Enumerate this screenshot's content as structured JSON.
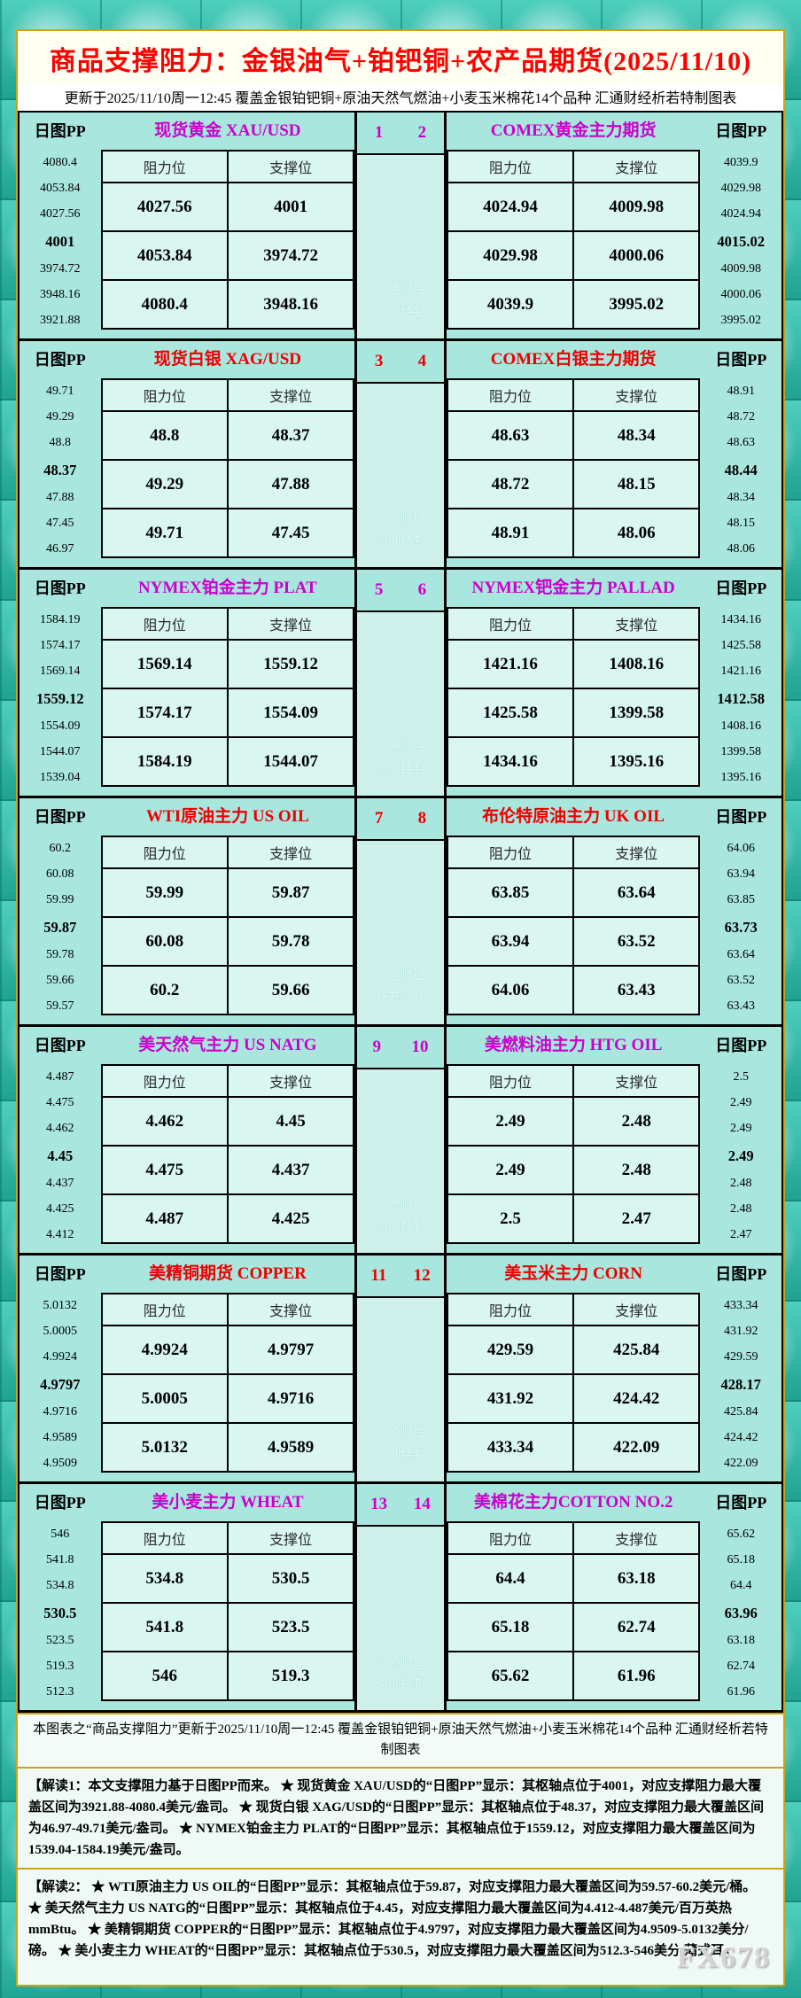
{
  "title": "商品支撑阻力：金银油气+铂钯铜+农产品期货(2025/11/10)",
  "subtitle": "更新于2025/11/10周一12:45  覆盖金银铂钯铜+原油天然气燃油+小麦玉米棉花14个品种  汇通财经析若特制图表",
  "labels": {
    "pp": "日图PP",
    "resistance": "阻力位",
    "support": "支撑位"
  },
  "colors": {
    "title_red": "#ff0000",
    "accent_magenta": "#cc00cc",
    "accent_red": "#ee0000",
    "panel_teal": "#a9e6de",
    "cell_teal": "#d9f6f1",
    "gold_border": "#c9a515"
  },
  "rows": [
    {
      "nums": [
        "1",
        "2"
      ],
      "accent": "#cc00cc",
      "watermark": [
        "汇通财经",
        "原创特制"
      ],
      "left": {
        "title": "现货黄金 XAU/USD",
        "pp": [
          "4080.4",
          "4053.84",
          "4027.56",
          "4001",
          "3974.72",
          "3948.16",
          "3921.88"
        ],
        "table": [
          [
            "4027.56",
            "4001"
          ],
          [
            "4053.84",
            "3974.72"
          ],
          [
            "4080.4",
            "3948.16"
          ]
        ]
      },
      "right": {
        "title": "COMEX黄金主力期货",
        "pp": [
          "4039.9",
          "4029.98",
          "4024.94",
          "4015.02",
          "4009.98",
          "4000.06",
          "3995.02"
        ],
        "table": [
          [
            "4024.94",
            "4009.98"
          ],
          [
            "4029.98",
            "4000.06"
          ],
          [
            "4039.9",
            "3995.02"
          ]
        ]
      }
    },
    {
      "nums": [
        "3",
        "4"
      ],
      "accent": "#ee0000",
      "watermark": [
        "汇通财经",
        "原创特制"
      ],
      "left": {
        "title": "现货白银 XAG/USD",
        "pp": [
          "49.71",
          "49.29",
          "48.8",
          "48.37",
          "47.88",
          "47.45",
          "46.97"
        ],
        "table": [
          [
            "48.8",
            "48.37"
          ],
          [
            "49.29",
            "47.88"
          ],
          [
            "49.71",
            "47.45"
          ]
        ]
      },
      "right": {
        "title": "COMEX白银主力期货",
        "pp": [
          "48.91",
          "48.72",
          "48.63",
          "48.44",
          "48.34",
          "48.15",
          "48.06"
        ],
        "table": [
          [
            "48.63",
            "48.34"
          ],
          [
            "48.72",
            "48.15"
          ],
          [
            "48.91",
            "48.06"
          ]
        ]
      }
    },
    {
      "nums": [
        "5",
        "6"
      ],
      "accent": "#cc00cc",
      "watermark": [
        "汇通财经",
        "原创特制"
      ],
      "left": {
        "title": "NYMEX铂金主力 PLAT",
        "pp": [
          "1584.19",
          "1574.17",
          "1569.14",
          "1559.12",
          "1554.09",
          "1544.07",
          "1539.04"
        ],
        "table": [
          [
            "1569.14",
            "1559.12"
          ],
          [
            "1574.17",
            "1554.09"
          ],
          [
            "1584.19",
            "1544.07"
          ]
        ]
      },
      "right": {
        "title": "NYMEX钯金主力 PALLAD",
        "pp": [
          "1434.16",
          "1425.58",
          "1421.16",
          "1412.58",
          "1408.16",
          "1399.58",
          "1395.16"
        ],
        "table": [
          [
            "1421.16",
            "1408.16"
          ],
          [
            "1425.58",
            "1399.58"
          ],
          [
            "1434.16",
            "1395.16"
          ]
        ]
      }
    },
    {
      "nums": [
        "7",
        "8"
      ],
      "accent": "#ee0000",
      "watermark": [
        "汇通财经",
        "析若设计"
      ],
      "left": {
        "title": "WTI原油主力 US OIL",
        "pp": [
          "60.2",
          "60.08",
          "59.99",
          "59.87",
          "59.78",
          "59.66",
          "59.57"
        ],
        "table": [
          [
            "59.99",
            "59.87"
          ],
          [
            "60.08",
            "59.78"
          ],
          [
            "60.2",
            "59.66"
          ]
        ]
      },
      "right": {
        "title": "布伦特原油主力 UK OIL",
        "pp": [
          "64.06",
          "63.94",
          "63.85",
          "63.73",
          "63.64",
          "63.52",
          "63.43"
        ],
        "table": [
          [
            "63.85",
            "63.64"
          ],
          [
            "63.94",
            "63.52"
          ],
          [
            "64.06",
            "63.43"
          ]
        ]
      }
    },
    {
      "nums": [
        "9",
        "10"
      ],
      "accent": "#cc00cc",
      "watermark": [
        "汇通财经",
        "原创特制"
      ],
      "left": {
        "title": "美天然气主力 US NATG",
        "pp": [
          "4.487",
          "4.475",
          "4.462",
          "4.45",
          "4.437",
          "4.425",
          "4.412"
        ],
        "table": [
          [
            "4.462",
            "4.45"
          ],
          [
            "4.475",
            "4.437"
          ],
          [
            "4.487",
            "4.425"
          ]
        ]
      },
      "right": {
        "title": "美燃料油主力 HTG OIL",
        "pp": [
          "2.5",
          "2.49",
          "2.49",
          "2.49",
          "2.48",
          "2.48",
          "2.47"
        ],
        "table": [
          [
            "2.49",
            "2.48"
          ],
          [
            "2.49",
            "2.48"
          ],
          [
            "2.5",
            "2.47"
          ]
        ]
      }
    },
    {
      "nums": [
        "11",
        "12"
      ],
      "accent": "#ee0000",
      "watermark": [
        "汇通财经",
        "原创特制"
      ],
      "left": {
        "title": "美精铜期货 COPPER",
        "pp": [
          "5.0132",
          "5.0005",
          "4.9924",
          "4.9797",
          "4.9716",
          "4.9589",
          "4.9509"
        ],
        "table": [
          [
            "4.9924",
            "4.9797"
          ],
          [
            "5.0005",
            "4.9716"
          ],
          [
            "5.0132",
            "4.9589"
          ]
        ]
      },
      "right": {
        "title": "美玉米主力 CORN",
        "pp": [
          "433.34",
          "431.92",
          "429.59",
          "428.17",
          "425.84",
          "424.42",
          "422.09"
        ],
        "table": [
          [
            "429.59",
            "425.84"
          ],
          [
            "431.92",
            "424.42"
          ],
          [
            "433.34",
            "422.09"
          ]
        ]
      }
    },
    {
      "nums": [
        "13",
        "14"
      ],
      "accent": "#cc00cc",
      "watermark": [
        "汇通财经",
        "原创特制"
      ],
      "left": {
        "title": "美小麦主力 WHEAT",
        "pp": [
          "546",
          "541.8",
          "534.8",
          "530.5",
          "523.5",
          "519.3",
          "512.3"
        ],
        "table": [
          [
            "534.8",
            "530.5"
          ],
          [
            "541.8",
            "523.5"
          ],
          [
            "546",
            "519.3"
          ]
        ]
      },
      "right": {
        "title": "美棉花主力COTTON NO.2",
        "pp": [
          "65.62",
          "65.18",
          "64.4",
          "63.96",
          "63.18",
          "62.74",
          "61.96"
        ],
        "table": [
          [
            "64.4",
            "63.18"
          ],
          [
            "65.18",
            "62.74"
          ],
          [
            "65.62",
            "61.96"
          ]
        ]
      }
    }
  ],
  "footer": {
    "note": "本图表之“商品支撑阻力”更新于2025/11/10周一12:45  覆盖金银铂钯铜+原油天然气燃油+小麦玉米棉花14个品种  汇通财经析若特制图表",
    "interpretation1": "【解读1：本文支撑阻力基于日图PP而来。 ★ 现货黄金 XAU/USD的“日图PP”显示：其枢轴点位于4001，对应支撑阻力最大覆盖区间为3921.88-4080.4美元/盎司。 ★ 现货白银 XAG/USD的“日图PP”显示：其枢轴点位于48.37，对应支撑阻力最大覆盖区间为46.97-49.71美元/盎司。 ★ NYMEX铂金主力 PLAT的“日图PP”显示：其枢轴点位于1559.12，对应支撑阻力最大覆盖区间为1539.04-1584.19美元/盎司。",
    "interpretation2": "【解读2： ★ WTI原油主力 US OIL的“日图PP”显示：其枢轴点位于59.87，对应支撑阻力最大覆盖区间为59.57-60.2美元/桶。 ★ 美天然气主力 US NATG的“日图PP”显示：其枢轴点位于4.45，对应支撑阻力最大覆盖区间为4.412-4.487美元/百万英热mmBtu。 ★ 美精铜期货 COPPER的“日图PP”显示：其枢轴点位于4.9797，对应支撑阻力最大覆盖区间为4.9509-5.0132美分/磅。 ★ 美小麦主力 WHEAT的“日图PP”显示：其枢轴点位于530.5，对应支撑阻力最大覆盖区间为512.3-546美分/蒲式耳。",
    "brand": "FX678"
  },
  "chart_data": {
    "type": "table",
    "title": "商品支撑阻力：金银油气+铂钯铜+农产品期货(2025/11/10)",
    "updated": "2025/11/10周一12:45",
    "columns": [
      "阻力位",
      "支撑位"
    ],
    "instruments": [
      {
        "id": 1,
        "name": "现货黄金 XAU/USD",
        "pivot": 4001,
        "pp_levels": [
          4080.4,
          4053.84,
          4027.56,
          4001,
          3974.72,
          3948.16,
          3921.88
        ],
        "resistance": [
          4027.56,
          4053.84,
          4080.4
        ],
        "support": [
          4001,
          3974.72,
          3948.16
        ]
      },
      {
        "id": 2,
        "name": "COMEX黄金主力期货",
        "pivot": 4015.02,
        "pp_levels": [
          4039.9,
          4029.98,
          4024.94,
          4015.02,
          4009.98,
          4000.06,
          3995.02
        ],
        "resistance": [
          4024.94,
          4029.98,
          4039.9
        ],
        "support": [
          4009.98,
          4000.06,
          3995.02
        ]
      },
      {
        "id": 3,
        "name": "现货白银 XAG/USD",
        "pivot": 48.37,
        "pp_levels": [
          49.71,
          49.29,
          48.8,
          48.37,
          47.88,
          47.45,
          46.97
        ],
        "resistance": [
          48.8,
          49.29,
          49.71
        ],
        "support": [
          48.37,
          47.88,
          47.45
        ]
      },
      {
        "id": 4,
        "name": "COMEX白银主力期货",
        "pivot": 48.44,
        "pp_levels": [
          48.91,
          48.72,
          48.63,
          48.44,
          48.34,
          48.15,
          48.06
        ],
        "resistance": [
          48.63,
          48.72,
          48.91
        ],
        "support": [
          48.34,
          48.15,
          48.06
        ]
      },
      {
        "id": 5,
        "name": "NYMEX铂金主力 PLAT",
        "pivot": 1559.12,
        "pp_levels": [
          1584.19,
          1574.17,
          1569.14,
          1559.12,
          1554.09,
          1544.07,
          1539.04
        ],
        "resistance": [
          1569.14,
          1574.17,
          1584.19
        ],
        "support": [
          1559.12,
          1554.09,
          1544.07
        ]
      },
      {
        "id": 6,
        "name": "NYMEX钯金主力 PALLAD",
        "pivot": 1412.58,
        "pp_levels": [
          1434.16,
          1425.58,
          1421.16,
          1412.58,
          1408.16,
          1399.58,
          1395.16
        ],
        "resistance": [
          1421.16,
          1425.58,
          1434.16
        ],
        "support": [
          1408.16,
          1399.58,
          1395.16
        ]
      },
      {
        "id": 7,
        "name": "WTI原油主力 US OIL",
        "pivot": 59.87,
        "pp_levels": [
          60.2,
          60.08,
          59.99,
          59.87,
          59.78,
          59.66,
          59.57
        ],
        "resistance": [
          59.99,
          60.08,
          60.2
        ],
        "support": [
          59.87,
          59.78,
          59.66
        ]
      },
      {
        "id": 8,
        "name": "布伦特原油主力 UK OIL",
        "pivot": 63.73,
        "pp_levels": [
          64.06,
          63.94,
          63.85,
          63.73,
          63.64,
          63.52,
          63.43
        ],
        "resistance": [
          63.85,
          63.94,
          64.06
        ],
        "support": [
          63.64,
          63.52,
          63.43
        ]
      },
      {
        "id": 9,
        "name": "美天然气主力 US NATG",
        "pivot": 4.45,
        "pp_levels": [
          4.487,
          4.475,
          4.462,
          4.45,
          4.437,
          4.425,
          4.412
        ],
        "resistance": [
          4.462,
          4.475,
          4.487
        ],
        "support": [
          4.45,
          4.437,
          4.425
        ]
      },
      {
        "id": 10,
        "name": "美燃料油主力 HTG OIL",
        "pivot": 2.49,
        "pp_levels": [
          2.5,
          2.49,
          2.49,
          2.49,
          2.48,
          2.48,
          2.47
        ],
        "resistance": [
          2.49,
          2.49,
          2.5
        ],
        "support": [
          2.48,
          2.48,
          2.47
        ]
      },
      {
        "id": 11,
        "name": "美精铜期货 COPPER",
        "pivot": 4.9797,
        "pp_levels": [
          5.0132,
          5.0005,
          4.9924,
          4.9797,
          4.9716,
          4.9589,
          4.9509
        ],
        "resistance": [
          4.9924,
          5.0005,
          5.0132
        ],
        "support": [
          4.9797,
          4.9716,
          4.9589
        ]
      },
      {
        "id": 12,
        "name": "美玉米主力 CORN",
        "pivot": 428.17,
        "pp_levels": [
          433.34,
          431.92,
          429.59,
          428.17,
          425.84,
          424.42,
          422.09
        ],
        "resistance": [
          429.59,
          431.92,
          433.34
        ],
        "support": [
          425.84,
          424.42,
          422.09
        ]
      },
      {
        "id": 13,
        "name": "美小麦主力 WHEAT",
        "pivot": 530.5,
        "pp_levels": [
          546,
          541.8,
          534.8,
          530.5,
          523.5,
          519.3,
          512.3
        ],
        "resistance": [
          534.8,
          541.8,
          546
        ],
        "support": [
          530.5,
          523.5,
          519.3
        ]
      },
      {
        "id": 14,
        "name": "美棉花主力COTTON NO.2",
        "pivot": 63.96,
        "pp_levels": [
          65.62,
          65.18,
          64.4,
          63.96,
          63.18,
          62.74,
          61.96
        ],
        "resistance": [
          64.4,
          65.18,
          65.62
        ],
        "support": [
          63.18,
          62.74,
          61.96
        ]
      }
    ]
  }
}
